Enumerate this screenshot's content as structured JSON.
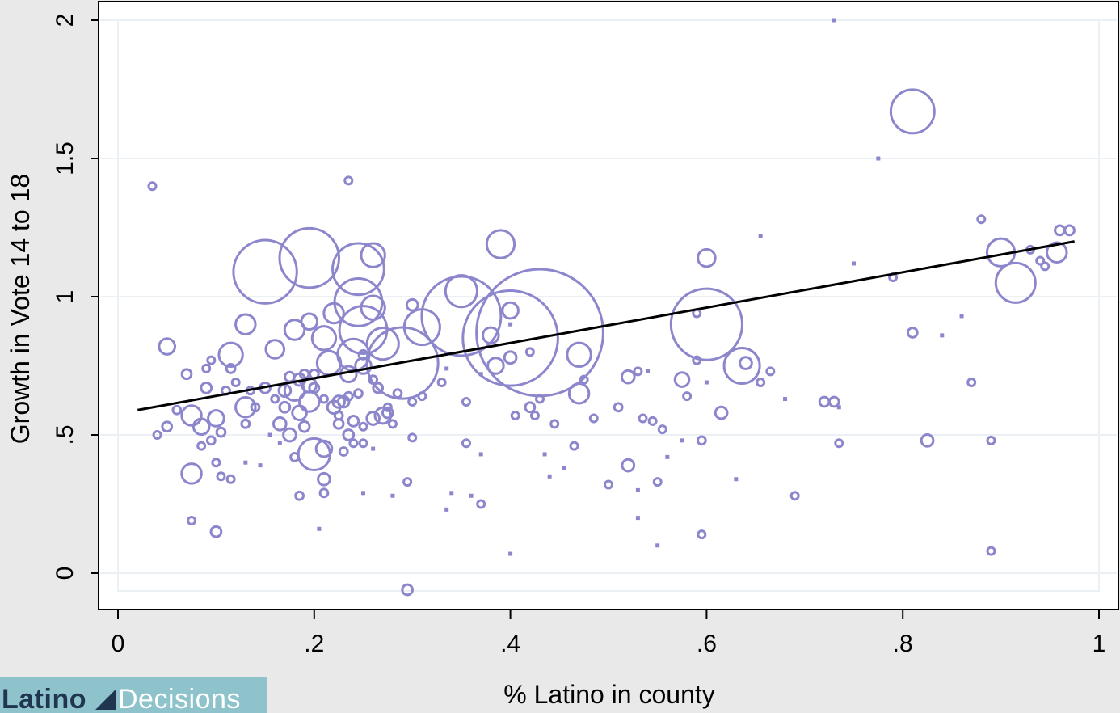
{
  "logo": {
    "part1": "Latino",
    "part2": "Decisions"
  },
  "chart_data": {
    "type": "scatter",
    "xlabel": "% Latino in county",
    "ylabel": "Growth in Vote 14 to 18",
    "xlim": [
      0,
      1
    ],
    "ylim": [
      -0.07,
      2
    ],
    "x_ticks": [
      0,
      0.2,
      0.4,
      0.6,
      0.8,
      1
    ],
    "x_tick_labels": [
      "0",
      ".2",
      ".4",
      ".6",
      ".8",
      "1"
    ],
    "y_ticks": [
      0,
      0.5,
      1,
      1.5,
      2
    ],
    "y_tick_labels": [
      "0",
      ".5",
      "1",
      "1.5",
      "2"
    ],
    "grid": true,
    "marker_color": "#8c86cc",
    "fit_line_color": "#000000",
    "fit_line": {
      "x": [
        0.02,
        0.975
      ],
      "y": [
        0.59,
        1.2
      ]
    },
    "series": [
      {
        "marker": "hollow circle, size ∝ weight",
        "points": [
          {
            "x": 0.43,
            "y": 0.87,
            "w": 16
          },
          {
            "x": 0.4,
            "y": 0.85,
            "w": 12
          },
          {
            "x": 0.35,
            "y": 0.93,
            "w": 10
          },
          {
            "x": 0.6,
            "y": 0.9,
            "w": 9
          },
          {
            "x": 0.29,
            "y": 0.76,
            "w": 9
          },
          {
            "x": 0.81,
            "y": 1.67,
            "w": 5.5
          },
          {
            "x": 0.15,
            "y": 1.09,
            "w": 8
          },
          {
            "x": 0.195,
            "y": 1.14,
            "w": 7.5
          },
          {
            "x": 0.245,
            "y": 1.1,
            "w": 6.5
          },
          {
            "x": 0.245,
            "y": 0.98,
            "w": 6
          },
          {
            "x": 0.25,
            "y": 0.88,
            "w": 6
          },
          {
            "x": 0.24,
            "y": 0.79,
            "w": 4
          },
          {
            "x": 0.27,
            "y": 0.83,
            "w": 4
          },
          {
            "x": 0.31,
            "y": 0.89,
            "w": 4.5
          },
          {
            "x": 0.35,
            "y": 1.02,
            "w": 4
          },
          {
            "x": 0.39,
            "y": 1.19,
            "w": 3.5
          },
          {
            "x": 0.26,
            "y": 1.15,
            "w": 3
          },
          {
            "x": 0.26,
            "y": 0.96,
            "w": 3
          },
          {
            "x": 0.6,
            "y": 1.14,
            "w": 2.2
          },
          {
            "x": 0.636,
            "y": 0.75,
            "w": 4.5
          },
          {
            "x": 0.9,
            "y": 1.16,
            "w": 3.5
          },
          {
            "x": 0.915,
            "y": 1.05,
            "w": 5
          },
          {
            "x": 0.957,
            "y": 1.16,
            "w": 2.5
          },
          {
            "x": 0.96,
            "y": 1.24,
            "w": 1.2
          },
          {
            "x": 0.97,
            "y": 1.24,
            "w": 1.2
          },
          {
            "x": 0.13,
            "y": 0.9,
            "w": 2.5
          },
          {
            "x": 0.115,
            "y": 0.79,
            "w": 3
          },
          {
            "x": 0.16,
            "y": 0.81,
            "w": 2.3
          },
          {
            "x": 0.18,
            "y": 0.88,
            "w": 2.5
          },
          {
            "x": 0.195,
            "y": 0.91,
            "w": 2
          },
          {
            "x": 0.21,
            "y": 0.85,
            "w": 3
          },
          {
            "x": 0.22,
            "y": 0.94,
            "w": 2.5
          },
          {
            "x": 0.215,
            "y": 0.76,
            "w": 3
          },
          {
            "x": 0.235,
            "y": 0.72,
            "w": 2
          },
          {
            "x": 0.25,
            "y": 0.75,
            "w": 2
          },
          {
            "x": 0.27,
            "y": 0.57,
            "w": 2
          },
          {
            "x": 0.18,
            "y": 0.66,
            "w": 2.5
          },
          {
            "x": 0.195,
            "y": 0.62,
            "w": 2.5
          },
          {
            "x": 0.2,
            "y": 0.43,
            "w": 4
          },
          {
            "x": 0.21,
            "y": 0.45,
            "w": 2
          },
          {
            "x": 0.13,
            "y": 0.6,
            "w": 2.5
          },
          {
            "x": 0.075,
            "y": 0.57,
            "w": 2.5
          },
          {
            "x": 0.085,
            "y": 0.53,
            "w": 2
          },
          {
            "x": 0.1,
            "y": 0.56,
            "w": 2
          },
          {
            "x": 0.075,
            "y": 0.36,
            "w": 2.5
          },
          {
            "x": 0.05,
            "y": 0.82,
            "w": 2
          },
          {
            "x": 0.47,
            "y": 0.79,
            "w": 3
          },
          {
            "x": 0.47,
            "y": 0.65,
            "w": 2.5
          },
          {
            "x": 0.4,
            "y": 0.95,
            "w": 2
          },
          {
            "x": 0.38,
            "y": 0.86,
            "w": 2
          },
          {
            "x": 0.385,
            "y": 0.75,
            "w": 2
          },
          {
            "x": 0.4,
            "y": 0.78,
            "w": 1.5
          },
          {
            "x": 0.575,
            "y": 0.7,
            "w": 1.8
          },
          {
            "x": 0.52,
            "y": 0.71,
            "w": 1.6
          },
          {
            "x": 0.64,
            "y": 0.76,
            "w": 1.5
          },
          {
            "x": 0.615,
            "y": 0.58,
            "w": 1.5
          },
          {
            "x": 0.52,
            "y": 0.39,
            "w": 1.5
          },
          {
            "x": 0.825,
            "y": 0.48,
            "w": 1.5
          },
          {
            "x": 0.81,
            "y": 0.87,
            "w": 1.2
          },
          {
            "x": 0.72,
            "y": 0.62,
            "w": 1.2
          },
          {
            "x": 0.73,
            "y": 0.62,
            "w": 1.2
          },
          {
            "x": 0.295,
            "y": -0.06,
            "w": 1.3
          },
          {
            "x": 0.1,
            "y": 0.15,
            "w": 1.3
          },
          {
            "x": 0.035,
            "y": 1.4,
            "w": 0.8
          },
          {
            "x": 0.235,
            "y": 1.42,
            "w": 0.8
          },
          {
            "x": 0.3,
            "y": 0.97,
            "w": 1.4
          },
          {
            "x": 0.165,
            "y": 0.54,
            "w": 1.6
          },
          {
            "x": 0.175,
            "y": 0.5,
            "w": 1.6
          },
          {
            "x": 0.19,
            "y": 0.53,
            "w": 1.3
          },
          {
            "x": 0.21,
            "y": 0.34,
            "w": 1.5
          },
          {
            "x": 0.225,
            "y": 0.62,
            "w": 1.5
          },
          {
            "x": 0.235,
            "y": 0.5,
            "w": 1.3
          },
          {
            "x": 0.24,
            "y": 0.55,
            "w": 1.3
          },
          {
            "x": 0.26,
            "y": 0.56,
            "w": 1.6
          },
          {
            "x": 0.275,
            "y": 0.58,
            "w": 1.3
          },
          {
            "x": 0.09,
            "y": 0.67,
            "w": 1.3
          },
          {
            "x": 0.07,
            "y": 0.72,
            "w": 1.2
          },
          {
            "x": 0.06,
            "y": 0.59,
            "w": 1
          },
          {
            "x": 0.05,
            "y": 0.53,
            "w": 1.2
          },
          {
            "x": 0.04,
            "y": 0.5,
            "w": 0.8
          },
          {
            "x": 0.095,
            "y": 0.48,
            "w": 1
          },
          {
            "x": 0.105,
            "y": 0.51,
            "w": 1.1
          },
          {
            "x": 0.085,
            "y": 0.46,
            "w": 0.8
          },
          {
            "x": 0.1,
            "y": 0.4,
            "w": 0.9
          },
          {
            "x": 0.11,
            "y": 0.66,
            "w": 1
          },
          {
            "x": 0.115,
            "y": 0.74,
            "w": 1.1
          },
          {
            "x": 0.09,
            "y": 0.74,
            "w": 0.8
          },
          {
            "x": 0.095,
            "y": 0.77,
            "w": 0.8
          },
          {
            "x": 0.14,
            "y": 0.6,
            "w": 1
          },
          {
            "x": 0.15,
            "y": 0.67,
            "w": 1.3
          },
          {
            "x": 0.16,
            "y": 0.63,
            "w": 0.8
          },
          {
            "x": 0.17,
            "y": 0.6,
            "w": 1.3
          },
          {
            "x": 0.19,
            "y": 0.72,
            "w": 1.1
          },
          {
            "x": 0.2,
            "y": 0.72,
            "w": 1.1
          },
          {
            "x": 0.21,
            "y": 0.63,
            "w": 0.8
          },
          {
            "x": 0.225,
            "y": 0.57,
            "w": 1
          },
          {
            "x": 0.235,
            "y": 0.64,
            "w": 1
          },
          {
            "x": 0.245,
            "y": 0.65,
            "w": 1
          },
          {
            "x": 0.25,
            "y": 0.79,
            "w": 1.1
          },
          {
            "x": 0.26,
            "y": 0.7,
            "w": 1
          },
          {
            "x": 0.285,
            "y": 0.65,
            "w": 1
          },
          {
            "x": 0.25,
            "y": 0.47,
            "w": 0.7
          },
          {
            "x": 0.25,
            "y": 0.53,
            "w": 0.8
          },
          {
            "x": 0.275,
            "y": 0.6,
            "w": 0.9
          },
          {
            "x": 0.28,
            "y": 0.54,
            "w": 0.9
          },
          {
            "x": 0.3,
            "y": 0.62,
            "w": 0.7
          },
          {
            "x": 0.33,
            "y": 0.69,
            "w": 0.8
          },
          {
            "x": 0.355,
            "y": 0.62,
            "w": 0.9
          },
          {
            "x": 0.31,
            "y": 0.64,
            "w": 0.6
          },
          {
            "x": 0.18,
            "y": 0.42,
            "w": 1
          },
          {
            "x": 0.185,
            "y": 0.28,
            "w": 1
          },
          {
            "x": 0.21,
            "y": 0.29,
            "w": 1
          },
          {
            "x": 0.23,
            "y": 0.44,
            "w": 1
          },
          {
            "x": 0.24,
            "y": 0.47,
            "w": 0.8
          },
          {
            "x": 0.12,
            "y": 0.69,
            "w": 0.8
          },
          {
            "x": 0.135,
            "y": 0.66,
            "w": 0.8
          },
          {
            "x": 0.13,
            "y": 0.54,
            "w": 1
          },
          {
            "x": 0.105,
            "y": 0.35,
            "w": 0.8
          },
          {
            "x": 0.115,
            "y": 0.34,
            "w": 0.7
          },
          {
            "x": 0.075,
            "y": 0.19,
            "w": 0.9
          },
          {
            "x": 0.42,
            "y": 0.8,
            "w": 0.9
          },
          {
            "x": 0.43,
            "y": 0.63,
            "w": 0.9
          },
          {
            "x": 0.42,
            "y": 0.6,
            "w": 1.2
          },
          {
            "x": 0.425,
            "y": 0.57,
            "w": 0.9
          },
          {
            "x": 0.405,
            "y": 0.57,
            "w": 0.8
          },
          {
            "x": 0.445,
            "y": 0.54,
            "w": 0.8
          },
          {
            "x": 0.485,
            "y": 0.56,
            "w": 0.9
          },
          {
            "x": 0.475,
            "y": 0.7,
            "w": 0.8
          },
          {
            "x": 0.465,
            "y": 0.46,
            "w": 0.6
          },
          {
            "x": 0.51,
            "y": 0.6,
            "w": 1
          },
          {
            "x": 0.53,
            "y": 0.73,
            "w": 0.7
          },
          {
            "x": 0.535,
            "y": 0.56,
            "w": 0.7
          },
          {
            "x": 0.545,
            "y": 0.55,
            "w": 0.6
          },
          {
            "x": 0.555,
            "y": 0.52,
            "w": 0.8
          },
          {
            "x": 0.58,
            "y": 0.64,
            "w": 0.7
          },
          {
            "x": 0.59,
            "y": 0.77,
            "w": 0.9
          },
          {
            "x": 0.595,
            "y": 0.48,
            "w": 1
          },
          {
            "x": 0.5,
            "y": 0.32,
            "w": 0.7
          },
          {
            "x": 0.55,
            "y": 0.33,
            "w": 0.7
          },
          {
            "x": 0.595,
            "y": 0.14,
            "w": 0.7
          },
          {
            "x": 0.37,
            "y": 0.25,
            "w": 0.8
          },
          {
            "x": 0.355,
            "y": 0.47,
            "w": 0.7
          },
          {
            "x": 0.295,
            "y": 0.33,
            "w": 0.8
          },
          {
            "x": 0.3,
            "y": 0.49,
            "w": 0.7
          },
          {
            "x": 0.59,
            "y": 0.94,
            "w": 0.6
          },
          {
            "x": 0.655,
            "y": 0.69,
            "w": 0.6
          },
          {
            "x": 0.665,
            "y": 0.73,
            "w": 0.6
          },
          {
            "x": 0.69,
            "y": 0.28,
            "w": 0.9
          },
          {
            "x": 0.735,
            "y": 0.47,
            "w": 0.7
          },
          {
            "x": 0.79,
            "y": 1.07,
            "w": 0.6
          },
          {
            "x": 0.87,
            "y": 0.69,
            "w": 0.6
          },
          {
            "x": 0.88,
            "y": 1.28,
            "w": 0.6
          },
          {
            "x": 0.89,
            "y": 0.48,
            "w": 0.7
          },
          {
            "x": 0.89,
            "y": 0.08,
            "w": 0.7
          },
          {
            "x": 0.945,
            "y": 1.11,
            "w": 0.6
          },
          {
            "x": 0.94,
            "y": 1.13,
            "w": 0.6
          },
          {
            "x": 0.93,
            "y": 1.17,
            "w": 0.5
          },
          {
            "x": 0.195,
            "y": 0.68,
            "w": 1.8
          },
          {
            "x": 0.17,
            "y": 0.66,
            "w": 1.5
          },
          {
            "x": 0.22,
            "y": 0.6,
            "w": 1.6
          },
          {
            "x": 0.265,
            "y": 0.67,
            "w": 1.2
          },
          {
            "x": 0.185,
            "y": 0.58,
            "w": 1.8
          },
          {
            "x": 0.185,
            "y": 0.7,
            "w": 1.5
          },
          {
            "x": 0.225,
            "y": 0.54,
            "w": 1.2
          },
          {
            "x": 0.23,
            "y": 0.62,
            "w": 1.4
          },
          {
            "x": 0.2,
            "y": 0.67,
            "w": 1.2
          },
          {
            "x": 0.175,
            "y": 0.71,
            "w": 1.2
          }
        ]
      },
      {
        "marker": "small filled square",
        "points": [
          {
            "x": 0.73,
            "y": 2.0
          },
          {
            "x": 0.775,
            "y": 1.5
          },
          {
            "x": 0.655,
            "y": 1.22
          },
          {
            "x": 0.75,
            "y": 1.12
          },
          {
            "x": 0.86,
            "y": 0.93
          },
          {
            "x": 0.84,
            "y": 0.86
          },
          {
            "x": 0.735,
            "y": 0.6
          },
          {
            "x": 0.68,
            "y": 0.63
          },
          {
            "x": 0.63,
            "y": 0.34
          },
          {
            "x": 0.55,
            "y": 0.1
          },
          {
            "x": 0.53,
            "y": 0.2
          },
          {
            "x": 0.4,
            "y": 0.07
          },
          {
            "x": 0.44,
            "y": 0.35
          },
          {
            "x": 0.455,
            "y": 0.38
          },
          {
            "x": 0.435,
            "y": 0.43
          },
          {
            "x": 0.54,
            "y": 0.73
          },
          {
            "x": 0.56,
            "y": 0.42
          },
          {
            "x": 0.575,
            "y": 0.48
          },
          {
            "x": 0.205,
            "y": 0.16
          },
          {
            "x": 0.145,
            "y": 0.39
          },
          {
            "x": 0.13,
            "y": 0.4
          },
          {
            "x": 0.25,
            "y": 0.29
          },
          {
            "x": 0.335,
            "y": 0.23
          },
          {
            "x": 0.34,
            "y": 0.29
          },
          {
            "x": 0.36,
            "y": 0.28
          },
          {
            "x": 0.37,
            "y": 0.72
          },
          {
            "x": 0.37,
            "y": 0.43
          },
          {
            "x": 0.53,
            "y": 0.3
          },
          {
            "x": 0.6,
            "y": 0.69
          },
          {
            "x": 0.26,
            "y": 0.45
          },
          {
            "x": 0.28,
            "y": 0.28
          },
          {
            "x": 0.155,
            "y": 0.5
          },
          {
            "x": 0.165,
            "y": 0.47
          },
          {
            "x": 0.335,
            "y": 0.74
          },
          {
            "x": 0.4,
            "y": 0.9
          }
        ]
      }
    ]
  }
}
